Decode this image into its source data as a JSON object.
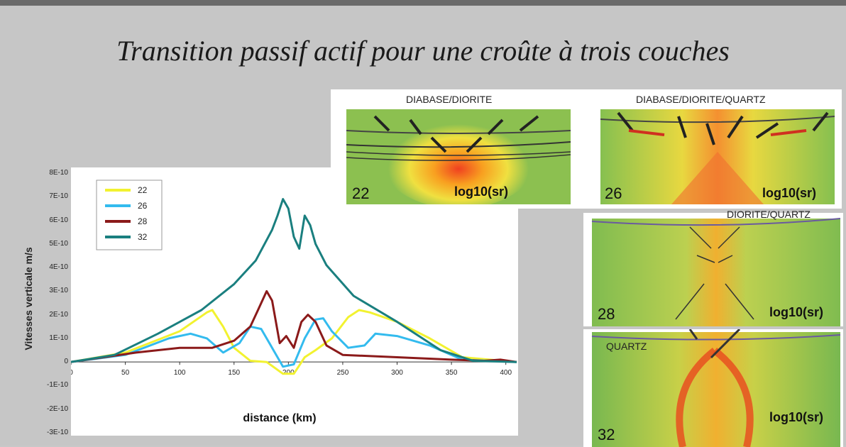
{
  "slide": {
    "title": "Transition passif actif  pour une croûte à trois couches"
  },
  "panels": [
    {
      "label": "DIABASE/DIORITE",
      "number": "22",
      "log": "log10(sr)"
    },
    {
      "label": "DIABASE/DIORITE/QUARTZ",
      "number": "26",
      "log": "log10(sr)"
    },
    {
      "label": "DIORITE/QUARTZ",
      "number": "28",
      "log": "log10(sr)"
    },
    {
      "label": "QUARTZ",
      "number": "32",
      "log": "log10(sr)"
    }
  ],
  "colors": {
    "s22": "#f2f230",
    "s26": "#33bbee",
    "s28": "#8b1a1a",
    "s32": "#1a7f7f"
  },
  "chart_data": {
    "type": "line",
    "xlabel": "distance (km)",
    "ylabel": "Vitesses verticale m/s",
    "xlim": [
      0,
      410
    ],
    "ylim": [
      -3e-10,
      8e-10
    ],
    "xticks": [
      "0",
      "50",
      "100",
      "150",
      "200",
      "250",
      "300",
      "350",
      "400"
    ],
    "yticks": [
      "8E-10",
      "7E-10",
      "6E-10",
      "5E-10",
      "4E-10",
      "3E-10",
      "2E-10",
      "1E-10",
      "0",
      "-1E-10",
      "-2E-10",
      "-3E-10"
    ],
    "legend_position": "top-left",
    "series": [
      {
        "name": "22",
        "x": [
          0,
          50,
          100,
          125,
          130,
          140,
          150,
          165,
          180,
          195,
          205,
          215,
          225,
          240,
          255,
          265,
          275,
          300,
          330,
          360,
          410
        ],
        "y": [
          0,
          4e-11,
          1.3e-10,
          2.1e-10,
          2.2e-10,
          1.5e-10,
          6e-11,
          5e-12,
          0,
          -5e-11,
          -5e-11,
          2e-11,
          5e-11,
          1e-10,
          1.9e-10,
          2.2e-10,
          2.1e-10,
          1.7e-10,
          1e-10,
          2e-11,
          0
        ]
      },
      {
        "name": "26",
        "x": [
          0,
          50,
          90,
          110,
          125,
          140,
          155,
          165,
          175,
          185,
          195,
          205,
          215,
          225,
          232,
          240,
          255,
          270,
          280,
          300,
          330,
          360,
          410
        ],
        "y": [
          0,
          3e-11,
          1e-10,
          1.2e-10,
          1e-10,
          4e-11,
          8e-11,
          1.5e-10,
          1.4e-10,
          6e-11,
          -2e-11,
          -1e-11,
          1e-10,
          1.8e-10,
          1.85e-10,
          1.3e-10,
          6e-11,
          7e-11,
          1.2e-10,
          1.1e-10,
          7e-11,
          1e-11,
          0
        ]
      },
      {
        "name": "28",
        "x": [
          0,
          30,
          60,
          100,
          130,
          150,
          165,
          172,
          180,
          185,
          192,
          198,
          205,
          212,
          218,
          225,
          235,
          250,
          300,
          350,
          380,
          395,
          410
        ],
        "y": [
          0,
          2e-11,
          4e-11,
          6e-11,
          6e-11,
          9e-11,
          1.5e-10,
          2.2e-10,
          3e-10,
          2.6e-10,
          8e-11,
          1.1e-10,
          6e-11,
          1.7e-10,
          2e-10,
          1.7e-10,
          7e-11,
          3e-11,
          2e-11,
          1e-11,
          5e-12,
          1e-11,
          0
        ]
      },
      {
        "name": "32",
        "x": [
          0,
          40,
          80,
          120,
          150,
          170,
          185,
          190,
          195,
          200,
          205,
          210,
          215,
          220,
          225,
          235,
          260,
          300,
          340,
          370,
          410
        ],
        "y": [
          0,
          3e-11,
          1.2e-10,
          2.2e-10,
          3.3e-10,
          4.3e-10,
          5.6e-10,
          6.2e-10,
          6.9e-10,
          6.5e-10,
          5.3e-10,
          4.8e-10,
          6.2e-10,
          5.8e-10,
          5e-10,
          4.1e-10,
          2.8e-10,
          1.7e-10,
          5e-11,
          5e-12,
          0
        ]
      }
    ]
  }
}
